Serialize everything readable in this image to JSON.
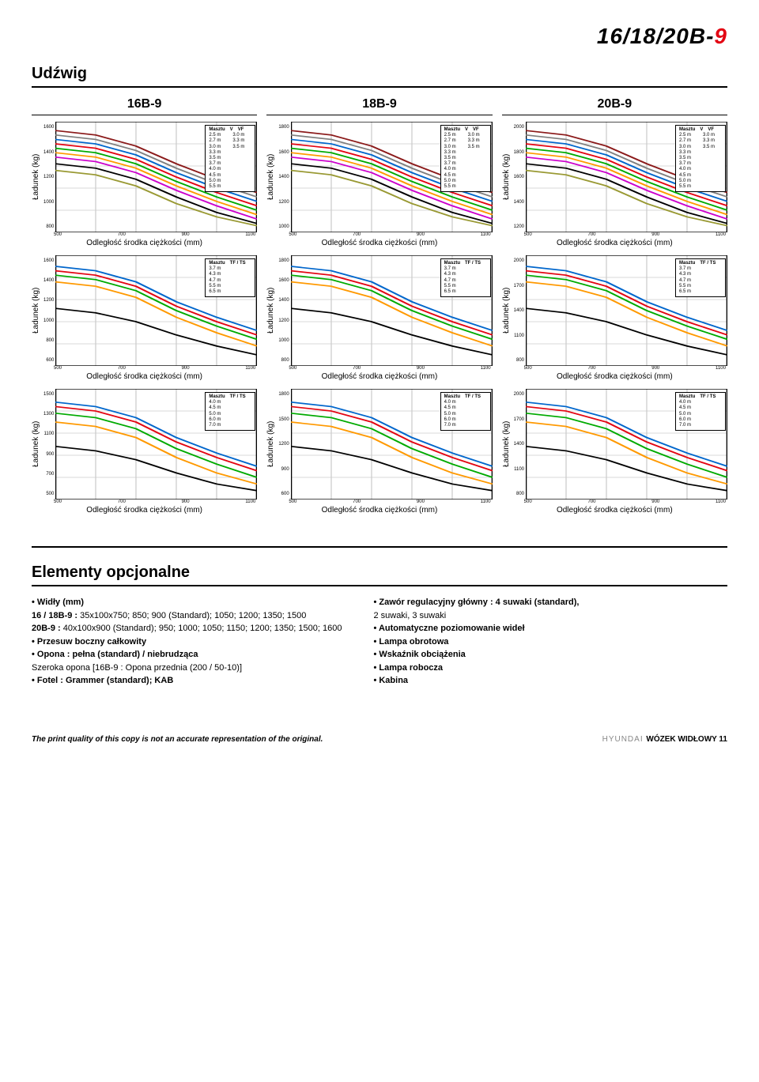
{
  "header": {
    "pre": "16/18/20B-",
    "suf": "9"
  },
  "section_title": "Udźwig",
  "cols": [
    "16B-9",
    "18B-9",
    "20B-9"
  ],
  "yaxis": "Ładunek (kg)",
  "xaxis": "Odległość środka ciężkości (mm)",
  "xticks": [
    "500",
    "700",
    "900",
    "1100"
  ],
  "colors": {
    "c1": "#8b1a1a",
    "c2": "#808080",
    "c3": "#0066cc",
    "c4": "#e30613",
    "c5": "#00aa00",
    "c6": "#ff9900",
    "c7": "#cc00cc",
    "c8": "#000000",
    "c9": "#999933",
    "grid": "#cccccc",
    "axis": "#000000"
  },
  "charts": [
    [
      {
        "yticks": [
          "1600",
          "1400",
          "1200",
          "1000",
          "800"
        ],
        "legend_head": [
          "Masztu",
          "V",
          "VF"
        ],
        "legend": [
          [
            "2.5 m",
            "3.0 m"
          ],
          [
            "2.7 m",
            "3.3 m"
          ],
          [
            "3.0 m",
            "3.5 m"
          ],
          [
            "3.3 m",
            ""
          ],
          [
            "3.5 m",
            ""
          ],
          [
            "3.7 m",
            ""
          ],
          [
            "4.0 m",
            ""
          ],
          [
            "4.5 m",
            ""
          ],
          [
            "5.0 m",
            ""
          ],
          [
            "5.5 m",
            ""
          ]
        ],
        "series": [
          {
            "c": "c1",
            "y": [
              92,
              88,
              78,
              62,
              48,
              36
            ]
          },
          {
            "c": "c2",
            "y": [
              88,
              84,
              74,
              58,
              44,
              32
            ]
          },
          {
            "c": "c3",
            "y": [
              84,
              80,
              70,
              54,
              40,
              28
            ]
          },
          {
            "c": "c4",
            "y": [
              80,
              76,
              66,
              50,
              36,
              24
            ]
          },
          {
            "c": "c5",
            "y": [
              76,
              72,
              62,
              46,
              32,
              20
            ]
          },
          {
            "c": "c6",
            "y": [
              72,
              68,
              58,
              42,
              28,
              16
            ]
          },
          {
            "c": "c7",
            "y": [
              68,
              64,
              54,
              38,
              24,
              12
            ]
          },
          {
            "c": "c8",
            "y": [
              62,
              58,
              48,
              32,
              18,
              8
            ]
          },
          {
            "c": "c9",
            "y": [
              56,
              52,
              42,
              26,
              14,
              6
            ]
          }
        ]
      },
      {
        "yticks": [
          "1600",
          "1400",
          "1200",
          "1000",
          "800",
          "600"
        ],
        "legend_head": [
          "Masztu",
          "TF / TS"
        ],
        "legend": [
          [
            "3.7 m",
            ""
          ],
          [
            "4.3 m",
            ""
          ],
          [
            "4.7 m",
            ""
          ],
          [
            "5.5 m",
            ""
          ],
          [
            "6.5 m",
            ""
          ]
        ],
        "series": [
          {
            "c": "c3",
            "y": [
              90,
              86,
              76,
              58,
              44,
              32
            ]
          },
          {
            "c": "c4",
            "y": [
              86,
              82,
              72,
              54,
              40,
              28
            ]
          },
          {
            "c": "c5",
            "y": [
              82,
              78,
              68,
              50,
              36,
              24
            ]
          },
          {
            "c": "c6",
            "y": [
              76,
              72,
              62,
              44,
              30,
              18
            ]
          },
          {
            "c": "c8",
            "y": [
              52,
              48,
              40,
              28,
              18,
              10
            ]
          }
        ]
      },
      {
        "yticks": [
          "1500",
          "1300",
          "1100",
          "900",
          "700",
          "500"
        ],
        "legend_head": [
          "Masztu",
          "TF / TS"
        ],
        "legend": [
          [
            "4.0 m",
            ""
          ],
          [
            "4.5 m",
            ""
          ],
          [
            "5.0 m",
            ""
          ],
          [
            "6.0 m",
            ""
          ],
          [
            "7.0 m",
            ""
          ]
        ],
        "series": [
          {
            "c": "c3",
            "y": [
              88,
              84,
              74,
              56,
              42,
              30
            ]
          },
          {
            "c": "c4",
            "y": [
              84,
              80,
              70,
              52,
              38,
              26
            ]
          },
          {
            "c": "c5",
            "y": [
              78,
              74,
              64,
              46,
              32,
              20
            ]
          },
          {
            "c": "c6",
            "y": [
              70,
              66,
              56,
              38,
              24,
              14
            ]
          },
          {
            "c": "c8",
            "y": [
              48,
              44,
              36,
              24,
              14,
              8
            ]
          }
        ]
      }
    ],
    [
      {
        "yticks": [
          "1800",
          "1600",
          "1400",
          "1200",
          "1000"
        ],
        "legend_head": [
          "Masztu",
          "V",
          "VF"
        ],
        "legend": [
          [
            "2.5 m",
            "3.0 m"
          ],
          [
            "2.7 m",
            "3.3 m"
          ],
          [
            "3.0 m",
            "3.5 m"
          ],
          [
            "3.3 m",
            ""
          ],
          [
            "3.5 m",
            ""
          ],
          [
            "3.7 m",
            ""
          ],
          [
            "4.0 m",
            ""
          ],
          [
            "4.5 m",
            ""
          ],
          [
            "5.0 m",
            ""
          ],
          [
            "5.5 m",
            ""
          ]
        ],
        "series": [
          {
            "c": "c1",
            "y": [
              92,
              88,
              78,
              62,
              48,
              36
            ]
          },
          {
            "c": "c2",
            "y": [
              88,
              84,
              74,
              58,
              44,
              32
            ]
          },
          {
            "c": "c3",
            "y": [
              84,
              80,
              70,
              54,
              40,
              28
            ]
          },
          {
            "c": "c4",
            "y": [
              80,
              76,
              66,
              50,
              36,
              24
            ]
          },
          {
            "c": "c5",
            "y": [
              76,
              72,
              62,
              46,
              32,
              20
            ]
          },
          {
            "c": "c6",
            "y": [
              72,
              68,
              58,
              42,
              28,
              16
            ]
          },
          {
            "c": "c7",
            "y": [
              68,
              64,
              54,
              38,
              24,
              12
            ]
          },
          {
            "c": "c8",
            "y": [
              62,
              58,
              48,
              32,
              18,
              8
            ]
          },
          {
            "c": "c9",
            "y": [
              56,
              52,
              42,
              26,
              14,
              6
            ]
          }
        ]
      },
      {
        "yticks": [
          "1800",
          "1600",
          "1400",
          "1200",
          "1000",
          "800"
        ],
        "legend_head": [
          "Masztu",
          "TF / TS"
        ],
        "legend": [
          [
            "3.7 m",
            ""
          ],
          [
            "4.3 m",
            ""
          ],
          [
            "4.7 m",
            ""
          ],
          [
            "5.5 m",
            ""
          ],
          [
            "6.5 m",
            ""
          ]
        ],
        "series": [
          {
            "c": "c3",
            "y": [
              90,
              86,
              76,
              58,
              44,
              32
            ]
          },
          {
            "c": "c4",
            "y": [
              86,
              82,
              72,
              54,
              40,
              28
            ]
          },
          {
            "c": "c5",
            "y": [
              82,
              78,
              68,
              50,
              36,
              24
            ]
          },
          {
            "c": "c6",
            "y": [
              76,
              72,
              62,
              44,
              30,
              18
            ]
          },
          {
            "c": "c8",
            "y": [
              52,
              48,
              40,
              28,
              18,
              10
            ]
          }
        ]
      },
      {
        "yticks": [
          "1800",
          "1500",
          "1200",
          "900",
          "600"
        ],
        "legend_head": [
          "Masztu",
          "TF / TS"
        ],
        "legend": [
          [
            "4.0 m",
            ""
          ],
          [
            "4.5 m",
            ""
          ],
          [
            "5.0 m",
            ""
          ],
          [
            "6.0 m",
            ""
          ],
          [
            "7.0 m",
            ""
          ]
        ],
        "series": [
          {
            "c": "c3",
            "y": [
              88,
              84,
              74,
              56,
              42,
              30
            ]
          },
          {
            "c": "c4",
            "y": [
              84,
              80,
              70,
              52,
              38,
              26
            ]
          },
          {
            "c": "c5",
            "y": [
              78,
              74,
              64,
              46,
              32,
              20
            ]
          },
          {
            "c": "c6",
            "y": [
              70,
              66,
              56,
              38,
              24,
              14
            ]
          },
          {
            "c": "c8",
            "y": [
              48,
              44,
              36,
              24,
              14,
              8
            ]
          }
        ]
      }
    ],
    [
      {
        "yticks": [
          "2000",
          "1800",
          "1600",
          "1400",
          "1200"
        ],
        "legend_head": [
          "Masztu",
          "V",
          "VF"
        ],
        "legend": [
          [
            "2.5 m",
            "3.0 m"
          ],
          [
            "2.7 m",
            "3.3 m"
          ],
          [
            "3.0 m",
            "3.5 m"
          ],
          [
            "3.3 m",
            ""
          ],
          [
            "3.5 m",
            ""
          ],
          [
            "3.7 m",
            ""
          ],
          [
            "4.0 m",
            ""
          ],
          [
            "4.5 m",
            ""
          ],
          [
            "5.0 m",
            ""
          ],
          [
            "5.5 m",
            ""
          ]
        ],
        "series": [
          {
            "c": "c1",
            "y": [
              92,
              88,
              78,
              62,
              48,
              36
            ]
          },
          {
            "c": "c2",
            "y": [
              88,
              84,
              74,
              58,
              44,
              32
            ]
          },
          {
            "c": "c3",
            "y": [
              84,
              80,
              70,
              54,
              40,
              28
            ]
          },
          {
            "c": "c4",
            "y": [
              80,
              76,
              66,
              50,
              36,
              24
            ]
          },
          {
            "c": "c5",
            "y": [
              76,
              72,
              62,
              46,
              32,
              20
            ]
          },
          {
            "c": "c6",
            "y": [
              72,
              68,
              58,
              42,
              28,
              16
            ]
          },
          {
            "c": "c7",
            "y": [
              68,
              64,
              54,
              38,
              24,
              12
            ]
          },
          {
            "c": "c8",
            "y": [
              62,
              58,
              48,
              32,
              18,
              8
            ]
          },
          {
            "c": "c9",
            "y": [
              56,
              52,
              42,
              26,
              14,
              6
            ]
          }
        ]
      },
      {
        "yticks": [
          "2000",
          "1700",
          "1400",
          "1100",
          "800"
        ],
        "legend_head": [
          "Masztu",
          "TF / TS"
        ],
        "legend": [
          [
            "3.7 m",
            ""
          ],
          [
            "4.3 m",
            ""
          ],
          [
            "4.7 m",
            ""
          ],
          [
            "5.5 m",
            ""
          ],
          [
            "6.5 m",
            ""
          ]
        ],
        "series": [
          {
            "c": "c3",
            "y": [
              90,
              86,
              76,
              58,
              44,
              32
            ]
          },
          {
            "c": "c4",
            "y": [
              86,
              82,
              72,
              54,
              40,
              28
            ]
          },
          {
            "c": "c5",
            "y": [
              82,
              78,
              68,
              50,
              36,
              24
            ]
          },
          {
            "c": "c6",
            "y": [
              76,
              72,
              62,
              44,
              30,
              18
            ]
          },
          {
            "c": "c8",
            "y": [
              52,
              48,
              40,
              28,
              18,
              10
            ]
          }
        ]
      },
      {
        "yticks": [
          "2000",
          "1700",
          "1400",
          "1100",
          "800"
        ],
        "legend_head": [
          "Masztu",
          "TF / TS"
        ],
        "legend": [
          [
            "4.0 m",
            ""
          ],
          [
            "4.5 m",
            ""
          ],
          [
            "5.0 m",
            ""
          ],
          [
            "6.0 m",
            ""
          ],
          [
            "7.0 m",
            ""
          ]
        ],
        "series": [
          {
            "c": "c3",
            "y": [
              88,
              84,
              74,
              56,
              42,
              30
            ]
          },
          {
            "c": "c4",
            "y": [
              84,
              80,
              70,
              52,
              38,
              26
            ]
          },
          {
            "c": "c5",
            "y": [
              78,
              74,
              64,
              46,
              32,
              20
            ]
          },
          {
            "c": "c6",
            "y": [
              70,
              66,
              56,
              38,
              24,
              14
            ]
          },
          {
            "c": "c8",
            "y": [
              48,
              44,
              36,
              24,
              14,
              8
            ]
          }
        ]
      }
    ]
  ],
  "options_title": "Elementy opcjonalne",
  "options_left": [
    {
      "b": "• Widły (mm)",
      "t": ""
    },
    {
      "b": "",
      "t": "16 / 18B-9 :",
      "r": " 35x100x750; 850; 900 (Standard); 1050; 1200; 1350; 1500",
      "ind": true
    },
    {
      "b": "",
      "t": "20B-9 :",
      "r": " 40x100x900 (Standard); 950; 1000; 1050; 1150; 1200; 1350; 1500; 1600",
      "ind": true
    },
    {
      "b": "• Przesuw boczny całkowity",
      "t": ""
    },
    {
      "b": "• Opona :",
      "t": " pełna (standard) / niebrudząca"
    },
    {
      "b": "",
      "t": "",
      "r": "Szeroka opona  [16B-9 : Opona przednia (200 / 50-10)]",
      "ind": true
    },
    {
      "b": "• Fotel :",
      "t": " Grammer (standard); KAB"
    }
  ],
  "options_right": [
    {
      "b": "• Zawór regulacyjny główny :",
      "t": " 4 suwaki (standard),"
    },
    {
      "b": "",
      "t": "",
      "r": "2 suwaki, 3 suwaki",
      "ind": true
    },
    {
      "b": "• Automatyczne poziomowanie wideł",
      "t": ""
    },
    {
      "b": "• Lampa obrotowa",
      "t": ""
    },
    {
      "b": "• Wskaźnik obciążenia",
      "t": ""
    },
    {
      "b": "• Lampa robocza",
      "t": ""
    },
    {
      "b": "• Kabina",
      "t": ""
    }
  ],
  "footer": {
    "left": "The print quality of this copy is not an accurate representation of the original.",
    "right_pre": "HYUNDAI ",
    "right_bold": "WÓZEK WIDŁOWY 11"
  }
}
